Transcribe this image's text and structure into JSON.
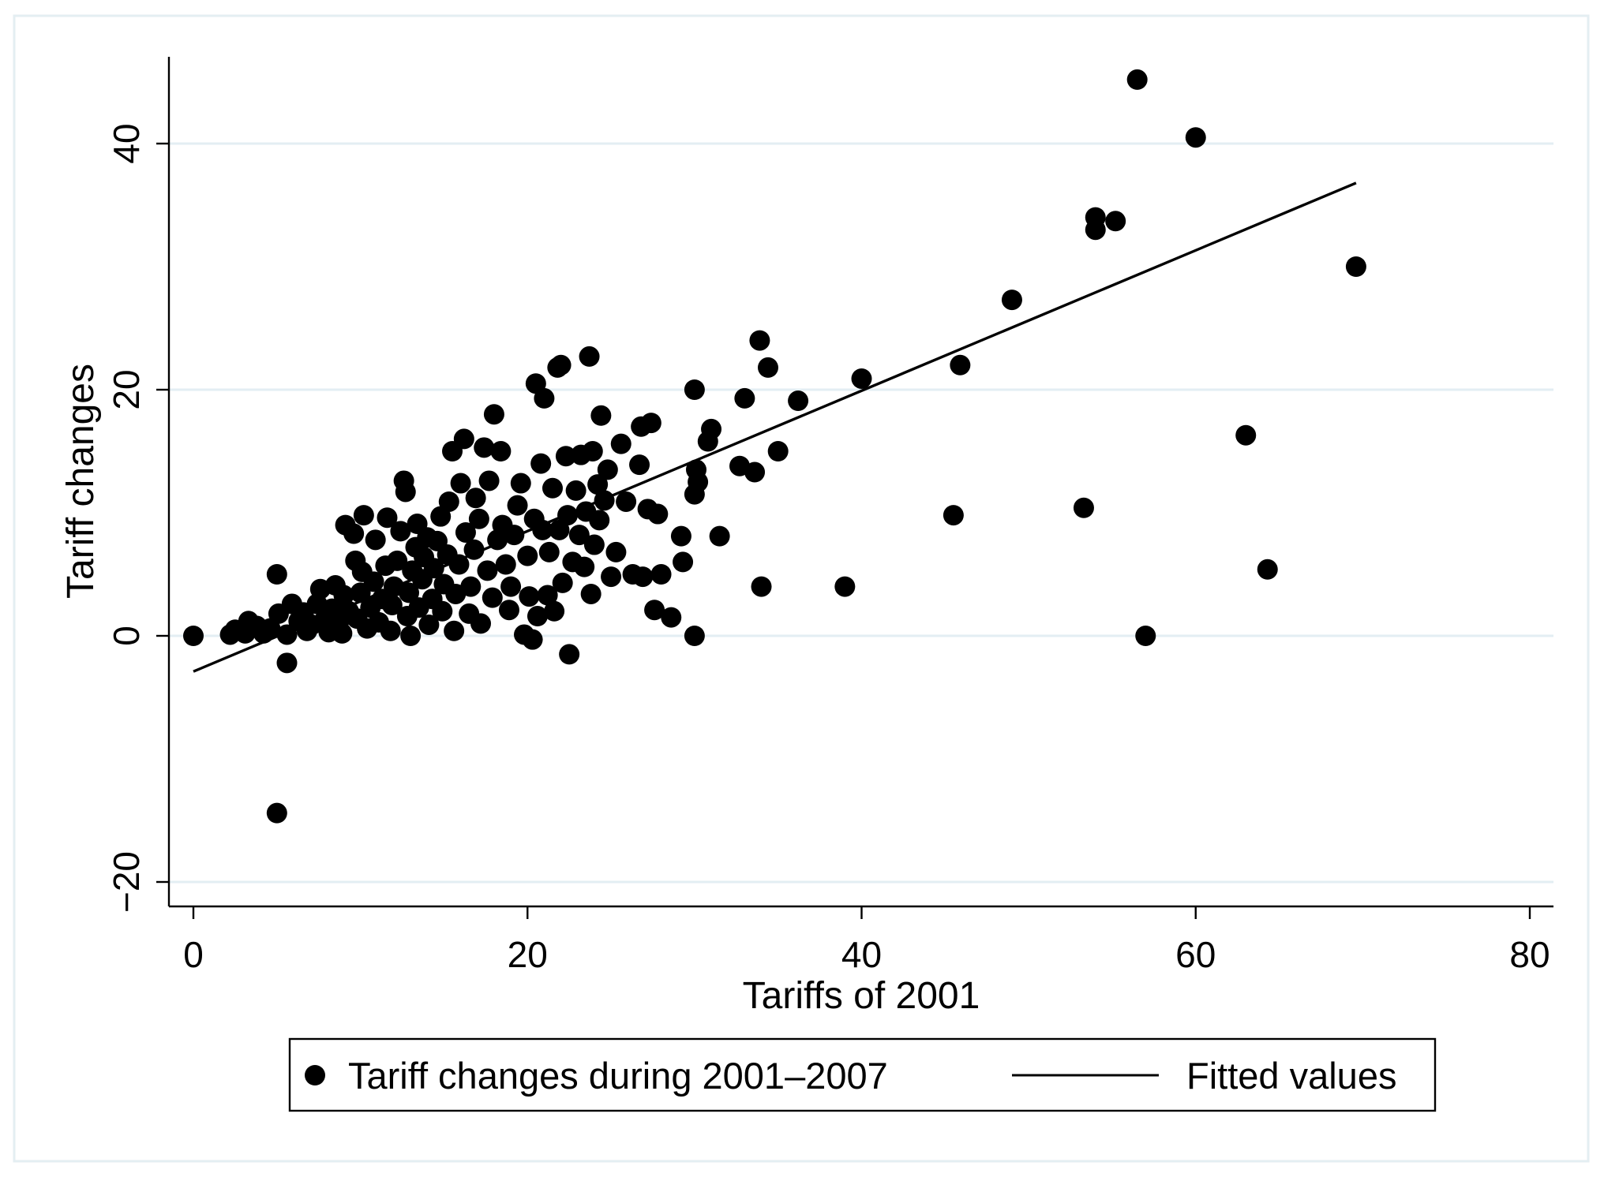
{
  "chart_data": {
    "type": "scatter",
    "xlabel": "Tariffs of 2001",
    "ylabel": "Tariff changes",
    "xlim": [
      0,
      80
    ],
    "ylim": [
      -20,
      46
    ],
    "x_ticks": [
      "0",
      "20",
      "40",
      "60",
      "80"
    ],
    "y_ticks": [
      "−20",
      "0",
      "20",
      "40"
    ],
    "x_tick_values": [
      0,
      20,
      40,
      60,
      80
    ],
    "y_tick_values": [
      -20,
      0,
      20,
      40
    ],
    "grid": true,
    "legend_position": "bottom",
    "legend": {
      "scatter_label": "Tariff changes during 2001–2007",
      "line_label": "Fitted values"
    },
    "series": [
      {
        "name": "Tariff changes during 2001–2007",
        "type": "scatter",
        "points": [
          [
            0,
            0
          ],
          [
            2.2,
            0.1
          ],
          [
            2.5,
            0.5
          ],
          [
            3.1,
            0.2
          ],
          [
            3.3,
            1.2
          ],
          [
            3.8,
            0.8
          ],
          [
            4.2,
            0.2
          ],
          [
            4.6,
            0.6
          ],
          [
            5,
            5
          ],
          [
            5,
            -14.4
          ],
          [
            5.1,
            1.8
          ],
          [
            5.6,
            -2.2
          ],
          [
            5.6,
            0.1
          ],
          [
            5.9,
            2.6
          ],
          [
            6.3,
            1.2
          ],
          [
            6.6,
            1.9
          ],
          [
            6.8,
            0.4
          ],
          [
            7.1,
            0.9
          ],
          [
            7.4,
            2.6
          ],
          [
            7.6,
            3.8
          ],
          [
            7.9,
            1.4
          ],
          [
            8.1,
            0.3
          ],
          [
            8.3,
            2.2
          ],
          [
            8.5,
            4.1
          ],
          [
            8.7,
            1.1
          ],
          [
            8.9,
            0.2
          ],
          [
            9.0,
            3.3
          ],
          [
            9.1,
            9.0
          ],
          [
            9.3,
            2.0
          ],
          [
            9.6,
            8.3
          ],
          [
            9.7,
            6.1
          ],
          [
            9.8,
            1.4
          ],
          [
            10.0,
            3.5
          ],
          [
            10.1,
            5.2
          ],
          [
            10.2,
            9.8
          ],
          [
            10.4,
            0.6
          ],
          [
            10.6,
            2.3
          ],
          [
            10.8,
            4.4
          ],
          [
            10.9,
            7.8
          ],
          [
            11.1,
            1.1
          ],
          [
            11.3,
            3.0
          ],
          [
            11.5,
            5.7
          ],
          [
            11.6,
            9.6
          ],
          [
            11.8,
            0.4
          ],
          [
            11.9,
            2.5
          ],
          [
            12.0,
            4.0
          ],
          [
            12.2,
            6.1
          ],
          [
            12.4,
            8.5
          ],
          [
            12.6,
            12.6
          ],
          [
            12.7,
            11.7
          ],
          [
            12.8,
            1.6
          ],
          [
            12.9,
            3.5
          ],
          [
            13.0,
            0.0
          ],
          [
            13.1,
            5.3
          ],
          [
            13.3,
            7.2
          ],
          [
            13.4,
            9.1
          ],
          [
            13.5,
            2.3
          ],
          [
            13.7,
            4.6
          ],
          [
            13.8,
            6.4
          ],
          [
            14.0,
            8.0
          ],
          [
            14.1,
            0.9
          ],
          [
            14.3,
            3.0
          ],
          [
            14.4,
            5.5
          ],
          [
            14.6,
            7.7
          ],
          [
            14.8,
            9.7
          ],
          [
            14.9,
            2.0
          ],
          [
            15.0,
            4.2
          ],
          [
            15.2,
            6.6
          ],
          [
            15.3,
            10.9
          ],
          [
            15.5,
            15.0
          ],
          [
            15.6,
            0.4
          ],
          [
            15.7,
            3.4
          ],
          [
            15.9,
            5.8
          ],
          [
            16.0,
            12.4
          ],
          [
            16.2,
            16.0
          ],
          [
            16.3,
            8.4
          ],
          [
            16.5,
            1.8
          ],
          [
            16.6,
            4.0
          ],
          [
            16.8,
            7.0
          ],
          [
            16.9,
            11.2
          ],
          [
            17.1,
            9.5
          ],
          [
            17.2,
            1.0
          ],
          [
            17.4,
            15.3
          ],
          [
            17.6,
            5.3
          ],
          [
            17.7,
            12.6
          ],
          [
            17.9,
            3.1
          ],
          [
            18.0,
            18.0
          ],
          [
            18.2,
            7.8
          ],
          [
            18.4,
            15.0
          ],
          [
            18.5,
            9.0
          ],
          [
            18.7,
            5.8
          ],
          [
            18.9,
            2.1
          ],
          [
            19.0,
            4.0
          ],
          [
            19.2,
            8.2
          ],
          [
            19.4,
            10.6
          ],
          [
            19.6,
            12.4
          ],
          [
            19.8,
            0.1
          ],
          [
            20.0,
            6.5
          ],
          [
            20.1,
            3.2
          ],
          [
            20.3,
            -0.3
          ],
          [
            20.4,
            9.5
          ],
          [
            20.5,
            20.5
          ],
          [
            20.6,
            1.6
          ],
          [
            20.8,
            14.0
          ],
          [
            20.9,
            8.6
          ],
          [
            21.0,
            19.3
          ],
          [
            21.2,
            3.3
          ],
          [
            21.3,
            6.8
          ],
          [
            21.5,
            12.0
          ],
          [
            21.6,
            2.0
          ],
          [
            21.8,
            21.8
          ],
          [
            21.9,
            8.6
          ],
          [
            22.0,
            22.0
          ],
          [
            22.1,
            4.3
          ],
          [
            22.3,
            14.6
          ],
          [
            22.4,
            9.8
          ],
          [
            22.5,
            -1.5
          ],
          [
            22.7,
            6.0
          ],
          [
            22.9,
            11.8
          ],
          [
            23.1,
            8.2
          ],
          [
            23.2,
            14.7
          ],
          [
            23.4,
            5.6
          ],
          [
            23.5,
            10.1
          ],
          [
            23.7,
            22.7
          ],
          [
            23.8,
            3.4
          ],
          [
            23.9,
            15.0
          ],
          [
            24.0,
            7.4
          ],
          [
            24.2,
            12.3
          ],
          [
            24.3,
            9.4
          ],
          [
            24.4,
            17.9
          ],
          [
            24.6,
            11.0
          ],
          [
            24.8,
            13.5
          ],
          [
            25.0,
            4.8
          ],
          [
            25.3,
            6.8
          ],
          [
            25.6,
            15.6
          ],
          [
            25.9,
            10.9
          ],
          [
            26.3,
            5.0
          ],
          [
            26.7,
            13.9
          ],
          [
            26.8,
            17.0
          ],
          [
            26.9,
            4.8
          ],
          [
            27.2,
            10.3
          ],
          [
            27.4,
            17.3
          ],
          [
            27.6,
            2.1
          ],
          [
            27.8,
            9.9
          ],
          [
            28.0,
            5.0
          ],
          [
            28.6,
            1.5
          ],
          [
            29.2,
            8.1
          ],
          [
            29.3,
            6.0
          ],
          [
            30.0,
            20.0
          ],
          [
            30.0,
            11.5
          ],
          [
            30.1,
            13.5
          ],
          [
            30.2,
            12.5
          ],
          [
            30.0,
            0.0
          ],
          [
            30.8,
            15.8
          ],
          [
            31.0,
            16.8
          ],
          [
            31.5,
            8.1
          ],
          [
            32.7,
            13.8
          ],
          [
            33.0,
            19.3
          ],
          [
            33.6,
            13.3
          ],
          [
            33.9,
            24.0
          ],
          [
            34.0,
            4.0
          ],
          [
            34.4,
            21.8
          ],
          [
            35.0,
            15.0
          ],
          [
            36.2,
            19.1
          ],
          [
            39.0,
            4.0
          ],
          [
            40.0,
            20.9
          ],
          [
            45.5,
            9.8
          ],
          [
            45.9,
            22.0
          ],
          [
            49.0,
            27.3
          ],
          [
            53.3,
            10.4
          ],
          [
            54.0,
            33.0
          ],
          [
            54.0,
            34.0
          ],
          [
            55.2,
            33.7
          ],
          [
            56.5,
            45.2
          ],
          [
            57.0,
            0.0
          ],
          [
            60.0,
            40.5
          ],
          [
            63.0,
            16.3
          ],
          [
            64.3,
            5.4
          ],
          [
            69.6,
            30.0
          ]
        ]
      },
      {
        "name": "Fitted values",
        "type": "line",
        "x": [
          0,
          69.6
        ],
        "y": [
          -2.9,
          36.8
        ]
      }
    ]
  }
}
